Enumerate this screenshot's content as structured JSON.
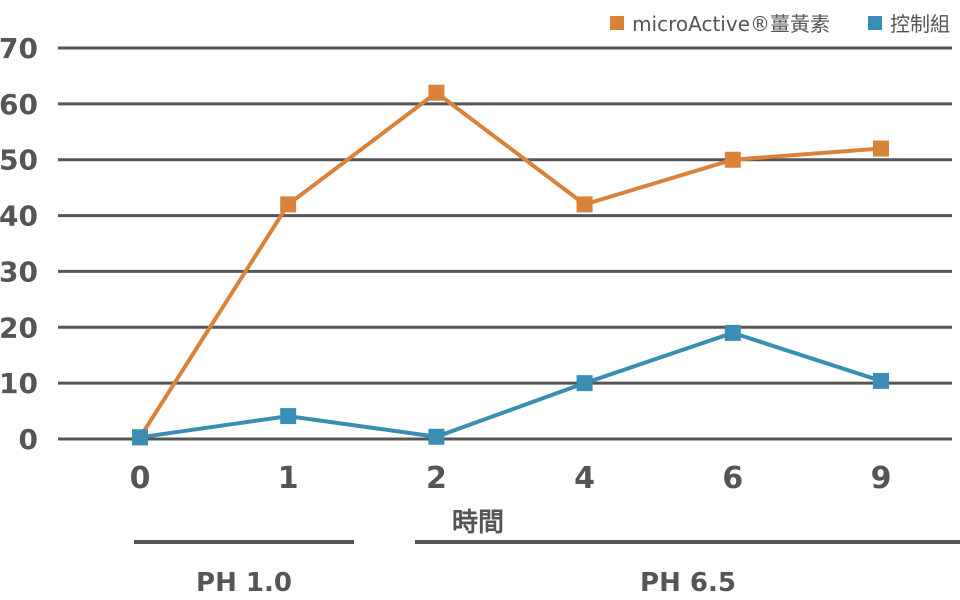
{
  "chart_data": {
    "type": "line",
    "title": "",
    "xlabel": "時間",
    "ylabel": "",
    "categories": [
      "0",
      "1",
      "2",
      "4",
      "6",
      "9"
    ],
    "ylim": [
      0,
      70
    ],
    "yticks": [
      0,
      10,
      20,
      30,
      40,
      50,
      60,
      70
    ],
    "grid": true,
    "legend_position": "top-right",
    "series": [
      {
        "name": "microActive®薑黃素",
        "color": "#d9833a",
        "values": [
          0.3,
          42,
          62,
          42,
          50,
          52
        ]
      },
      {
        "name": "控制組",
        "color": "#3a8db3",
        "values": [
          0.3,
          4.1,
          0.4,
          10,
          19,
          10.4
        ]
      }
    ],
    "phases": [
      {
        "label": "PH 1.0"
      },
      {
        "label": "PH 6.5"
      }
    ]
  }
}
